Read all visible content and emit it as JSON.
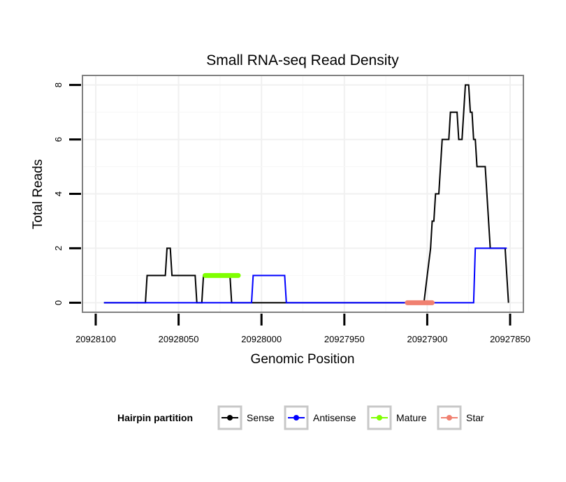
{
  "chart_data": {
    "type": "line",
    "title": "Small RNA-seq Read Density",
    "xlabel": "Genomic Position",
    "ylabel": "Total Reads",
    "xlim": [
      20928108,
      20927842
    ],
    "x_reversed": true,
    "ylim": [
      -0.35,
      8.35
    ],
    "x_ticks": [
      20928100,
      20928050,
      20928000,
      20927950,
      20927900,
      20927850
    ],
    "x_tick_labels": [
      "20928100",
      "20928050",
      "20928000",
      "20927950",
      "20927900",
      "20927850"
    ],
    "y_ticks": [
      0,
      2,
      4,
      6,
      8
    ],
    "y_tick_labels": [
      "0",
      "2",
      "4",
      "6",
      "8"
    ],
    "grid": true,
    "legend": {
      "title": "Hairpin partition",
      "position": "bottom",
      "entries": [
        {
          "label": "Sense",
          "color": "#000000"
        },
        {
          "label": "Antisense",
          "color": "#0000ff"
        },
        {
          "label": "Mature",
          "color": "#7fff00"
        },
        {
          "label": "Star",
          "color": "#f08070"
        }
      ]
    },
    "series": [
      {
        "name": "Sense",
        "color": "#000000",
        "points": [
          [
            20928095,
            0
          ],
          [
            20928070,
            0
          ],
          [
            20928069,
            1
          ],
          [
            20928058,
            1
          ],
          [
            20928057,
            2
          ],
          [
            20928055,
            2
          ],
          [
            20928054,
            1
          ],
          [
            20928040,
            1
          ],
          [
            20928039,
            0
          ],
          [
            20928036,
            0
          ],
          [
            20928035,
            1
          ],
          [
            20928019,
            1
          ],
          [
            20928018,
            0
          ],
          [
            20927902,
            0
          ],
          [
            20927900,
            1
          ],
          [
            20927898,
            2
          ],
          [
            20927897,
            3
          ],
          [
            20927896,
            3
          ],
          [
            20927895,
            4
          ],
          [
            20927893,
            4
          ],
          [
            20927892,
            5
          ],
          [
            20927891,
            6
          ],
          [
            20927887,
            6
          ],
          [
            20927886,
            7
          ],
          [
            20927882,
            7
          ],
          [
            20927881,
            6
          ],
          [
            20927879,
            6
          ],
          [
            20927878,
            7
          ],
          [
            20927877,
            8
          ],
          [
            20927875,
            8
          ],
          [
            20927874,
            7
          ],
          [
            20927873,
            7
          ],
          [
            20927872,
            6
          ],
          [
            20927871,
            6
          ],
          [
            20927870,
            5
          ],
          [
            20927865,
            5
          ],
          [
            20927864,
            4
          ],
          [
            20927863,
            3
          ],
          [
            20927862,
            2
          ],
          [
            20927853,
            2
          ],
          [
            20927852,
            1
          ],
          [
            20927851,
            0
          ]
        ]
      },
      {
        "name": "Antisense",
        "color": "#0000ff",
        "points": [
          [
            20928095,
            0
          ],
          [
            20928006,
            0
          ],
          [
            20928005,
            1
          ],
          [
            20927986,
            1
          ],
          [
            20927985,
            0
          ],
          [
            20927872,
            0
          ],
          [
            20927871,
            2
          ],
          [
            20927852,
            2
          ]
        ]
      },
      {
        "name": "Mature",
        "color": "#7fff00",
        "points": [
          [
            20928034,
            1
          ],
          [
            20928014,
            1
          ]
        ]
      },
      {
        "name": "Star",
        "color": "#f08070",
        "points": [
          [
            20927912,
            0
          ],
          [
            20927897,
            0
          ]
        ]
      }
    ]
  }
}
